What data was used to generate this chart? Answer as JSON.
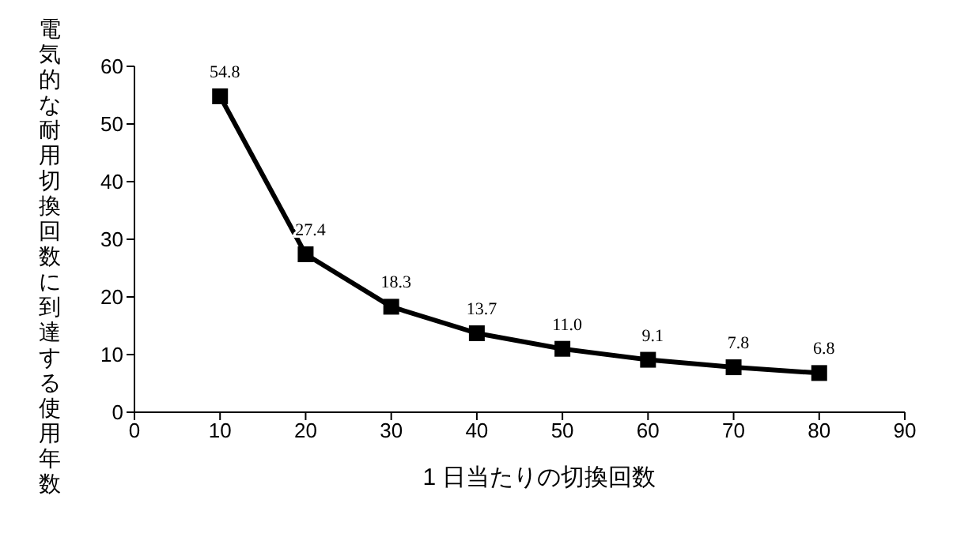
{
  "chart_data": {
    "type": "line",
    "xlabel": "1 日当たりの切換回数",
    "ylabel": "電気的な耐用切換回数に到達する使用年数",
    "x": [
      10,
      20,
      30,
      40,
      50,
      60,
      70,
      80
    ],
    "series": [
      {
        "color": "#000000",
        "values": [
          54.8,
          27.4,
          18.3,
          13.7,
          11.0,
          9.1,
          7.8,
          6.8
        ],
        "value_labels": [
          "54.8",
          "27.4",
          "18.3",
          "13.7",
          "11.0",
          "9.1",
          "7.8",
          "6.8"
        ]
      }
    ],
    "xlim": [
      0,
      90
    ],
    "xticks": [
      0,
      10,
      20,
      30,
      40,
      50,
      60,
      70,
      80,
      90
    ],
    "ylim": [
      0,
      60
    ],
    "yticks": [
      0,
      10,
      20,
      30,
      40,
      50,
      60
    ],
    "grid": false,
    "legend": false,
    "marker": "square",
    "line_style": "solid"
  }
}
